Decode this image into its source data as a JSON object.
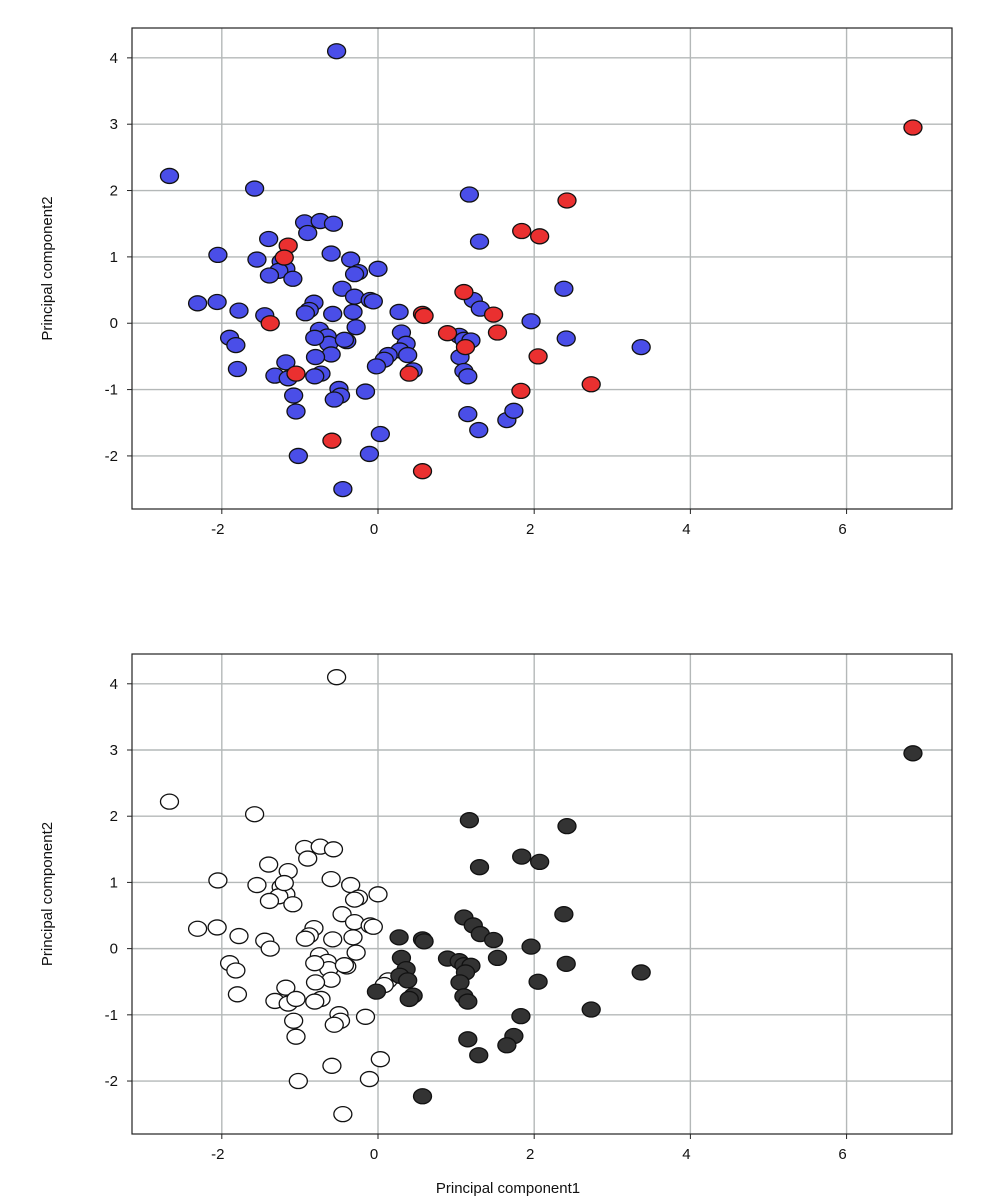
{
  "chart_data": [
    {
      "type": "scatter",
      "xlabel": "",
      "ylabel": "Principal component2",
      "xlim": [
        -3.15,
        7.35
      ],
      "ylim": [
        -2.8,
        4.45
      ],
      "xticks": [
        -2,
        0,
        2,
        4,
        6
      ],
      "yticks": [
        -2,
        -1,
        0,
        1,
        2,
        3,
        4
      ],
      "grid": true,
      "series": [
        {
          "color": "#4a4ee8",
          "points": [
            [
              -0.53,
              4.1
            ],
            [
              -2.67,
              2.22
            ],
            [
              -1.58,
              2.03
            ],
            [
              -0.94,
              1.52
            ],
            [
              -0.74,
              1.54
            ],
            [
              -0.57,
              1.5
            ],
            [
              -0.9,
              1.36
            ],
            [
              -1.4,
              1.27
            ],
            [
              -2.05,
              1.03
            ],
            [
              -1.55,
              0.96
            ],
            [
              -1.24,
              0.93
            ],
            [
              -1.18,
              0.82
            ],
            [
              -1.27,
              0.79
            ],
            [
              -1.39,
              0.72
            ],
            [
              -1.09,
              0.67
            ],
            [
              -0.6,
              1.05
            ],
            [
              -0.35,
              0.96
            ],
            [
              -0.25,
              0.77
            ],
            [
              -0.3,
              0.74
            ],
            [
              0.0,
              0.82
            ],
            [
              -0.46,
              0.52
            ],
            [
              -0.3,
              0.4
            ],
            [
              -0.1,
              0.35
            ],
            [
              -0.06,
              0.33
            ],
            [
              -2.31,
              0.3
            ],
            [
              -2.06,
              0.32
            ],
            [
              -1.78,
              0.19
            ],
            [
              -0.82,
              0.31
            ],
            [
              -0.88,
              0.2
            ],
            [
              -0.93,
              0.15
            ],
            [
              -0.58,
              0.14
            ],
            [
              -0.32,
              0.17
            ],
            [
              0.27,
              0.17
            ],
            [
              -1.45,
              0.12
            ],
            [
              -0.75,
              -0.1
            ],
            [
              -0.65,
              -0.2
            ],
            [
              -0.63,
              -0.31
            ],
            [
              -0.28,
              -0.06
            ],
            [
              -1.9,
              -0.22
            ],
            [
              -1.82,
              -0.33
            ],
            [
              -0.81,
              -0.22
            ],
            [
              -0.4,
              -0.27
            ],
            [
              -0.43,
              -0.25
            ],
            [
              0.3,
              -0.14
            ],
            [
              0.36,
              -0.31
            ],
            [
              0.28,
              -0.41
            ],
            [
              0.13,
              -0.48
            ],
            [
              0.38,
              -0.48
            ],
            [
              0.08,
              -0.55
            ],
            [
              -0.6,
              -0.47
            ],
            [
              -0.8,
              -0.51
            ],
            [
              -1.18,
              -0.59
            ],
            [
              -0.02,
              -0.65
            ],
            [
              -1.8,
              -0.69
            ],
            [
              -1.32,
              -0.79
            ],
            [
              -1.15,
              -0.83
            ],
            [
              -0.73,
              -0.76
            ],
            [
              -0.81,
              -0.8
            ],
            [
              0.45,
              -0.71
            ],
            [
              -0.5,
              -0.99
            ],
            [
              -0.16,
              -1.03
            ],
            [
              -1.08,
              -1.09
            ],
            [
              -0.48,
              -1.09
            ],
            [
              -0.56,
              -1.15
            ],
            [
              -1.05,
              -1.33
            ],
            [
              1.05,
              -0.51
            ],
            [
              1.04,
              -0.19
            ],
            [
              1.1,
              -0.25
            ],
            [
              1.1,
              -0.72
            ],
            [
              1.15,
              -0.8
            ],
            [
              1.19,
              -0.26
            ],
            [
              1.22,
              0.35
            ],
            [
              1.31,
              0.22
            ],
            [
              1.3,
              1.23
            ],
            [
              1.17,
              1.94
            ],
            [
              1.15,
              -1.37
            ],
            [
              1.29,
              -1.61
            ],
            [
              1.65,
              -1.46
            ],
            [
              1.74,
              -1.32
            ],
            [
              1.96,
              0.03
            ],
            [
              2.38,
              0.52
            ],
            [
              2.41,
              -0.23
            ],
            [
              3.37,
              -0.36
            ],
            [
              -0.45,
              -2.5
            ],
            [
              -1.02,
              -2.0
            ],
            [
              -0.11,
              -1.97
            ],
            [
              0.03,
              -1.67
            ]
          ]
        },
        {
          "color": "#ea3030",
          "points": [
            [
              6.85,
              2.95
            ],
            [
              2.42,
              1.85
            ],
            [
              1.84,
              1.39
            ],
            [
              2.07,
              1.31
            ],
            [
              -1.15,
              1.17
            ],
            [
              -1.2,
              0.99
            ],
            [
              -1.38,
              0.0
            ],
            [
              0.57,
              0.14
            ],
            [
              0.59,
              0.11
            ],
            [
              1.1,
              0.47
            ],
            [
              1.48,
              0.13
            ],
            [
              1.53,
              -0.14
            ],
            [
              0.89,
              -0.15
            ],
            [
              1.12,
              -0.36
            ],
            [
              2.05,
              -0.5
            ],
            [
              0.4,
              -0.76
            ],
            [
              -1.05,
              -0.76
            ],
            [
              2.73,
              -0.92
            ],
            [
              1.83,
              -1.02
            ],
            [
              -0.59,
              -1.77
            ],
            [
              0.57,
              -2.23
            ]
          ]
        }
      ]
    },
    {
      "type": "scatter",
      "xlabel": "Principal component1",
      "ylabel": "Principal component2",
      "xlim": [
        -3.15,
        7.35
      ],
      "ylim": [
        -2.8,
        4.45
      ],
      "xticks": [
        -2,
        0,
        2,
        4,
        6
      ],
      "yticks": [
        -2,
        -1,
        0,
        1,
        2,
        3,
        4
      ],
      "grid": true,
      "series": [
        {
          "color": "#ffffff",
          "points": [
            [
              -0.53,
              4.1
            ],
            [
              -2.67,
              2.22
            ],
            [
              -1.58,
              2.03
            ],
            [
              -0.94,
              1.52
            ],
            [
              -0.74,
              1.54
            ],
            [
              -0.57,
              1.5
            ],
            [
              -0.9,
              1.36
            ],
            [
              -1.4,
              1.27
            ],
            [
              -2.05,
              1.03
            ],
            [
              -1.55,
              0.96
            ],
            [
              -1.24,
              0.93
            ],
            [
              -1.18,
              0.82
            ],
            [
              -1.27,
              0.79
            ],
            [
              -1.39,
              0.72
            ],
            [
              -1.09,
              0.67
            ],
            [
              -0.6,
              1.05
            ],
            [
              -0.35,
              0.96
            ],
            [
              -0.25,
              0.77
            ],
            [
              -0.3,
              0.74
            ],
            [
              0.0,
              0.82
            ],
            [
              -0.46,
              0.52
            ],
            [
              -0.3,
              0.4
            ],
            [
              -0.1,
              0.35
            ],
            [
              -0.06,
              0.33
            ],
            [
              -2.31,
              0.3
            ],
            [
              -2.06,
              0.32
            ],
            [
              -1.78,
              0.19
            ],
            [
              -0.82,
              0.31
            ],
            [
              -0.88,
              0.2
            ],
            [
              -0.93,
              0.15
            ],
            [
              -0.58,
              0.14
            ],
            [
              -0.32,
              0.17
            ],
            [
              -1.45,
              0.12
            ],
            [
              -0.75,
              -0.1
            ],
            [
              -0.65,
              -0.2
            ],
            [
              -0.63,
              -0.31
            ],
            [
              -0.28,
              -0.06
            ],
            [
              -1.9,
              -0.22
            ],
            [
              -1.82,
              -0.33
            ],
            [
              -0.81,
              -0.22
            ],
            [
              -0.4,
              -0.27
            ],
            [
              -0.43,
              -0.25
            ],
            [
              0.13,
              -0.48
            ],
            [
              0.08,
              -0.55
            ],
            [
              -0.6,
              -0.47
            ],
            [
              -0.8,
              -0.51
            ],
            [
              -1.18,
              -0.59
            ],
            [
              -1.8,
              -0.69
            ],
            [
              -1.32,
              -0.79
            ],
            [
              -1.15,
              -0.83
            ],
            [
              -0.73,
              -0.76
            ],
            [
              -0.81,
              -0.8
            ],
            [
              -0.5,
              -0.99
            ],
            [
              -0.16,
              -1.03
            ],
            [
              -1.08,
              -1.09
            ],
            [
              -0.48,
              -1.09
            ],
            [
              -0.56,
              -1.15
            ],
            [
              -1.05,
              -1.33
            ],
            [
              -1.15,
              1.17
            ],
            [
              -1.2,
              0.99
            ],
            [
              -1.38,
              0.0
            ],
            [
              -1.05,
              -0.76
            ],
            [
              -0.59,
              -1.77
            ],
            [
              -0.45,
              -2.5
            ],
            [
              -1.02,
              -2.0
            ],
            [
              -0.11,
              -1.97
            ],
            [
              0.03,
              -1.67
            ]
          ]
        },
        {
          "color": "#333333",
          "points": [
            [
              6.85,
              2.95
            ],
            [
              2.42,
              1.85
            ],
            [
              1.84,
              1.39
            ],
            [
              2.07,
              1.31
            ],
            [
              1.3,
              1.23
            ],
            [
              1.17,
              1.94
            ],
            [
              2.38,
              0.52
            ],
            [
              1.1,
              0.47
            ],
            [
              1.22,
              0.35
            ],
            [
              1.31,
              0.22
            ],
            [
              1.48,
              0.13
            ],
            [
              0.57,
              0.14
            ],
            [
              0.59,
              0.11
            ],
            [
              0.27,
              0.17
            ],
            [
              1.96,
              0.03
            ],
            [
              1.53,
              -0.14
            ],
            [
              0.89,
              -0.15
            ],
            [
              1.04,
              -0.19
            ],
            [
              1.1,
              -0.25
            ],
            [
              1.19,
              -0.26
            ],
            [
              2.41,
              -0.23
            ],
            [
              0.3,
              -0.14
            ],
            [
              0.36,
              -0.31
            ],
            [
              0.28,
              -0.41
            ],
            [
              0.38,
              -0.48
            ],
            [
              1.12,
              -0.36
            ],
            [
              1.05,
              -0.51
            ],
            [
              2.05,
              -0.5
            ],
            [
              3.37,
              -0.36
            ],
            [
              -0.02,
              -0.65
            ],
            [
              0.45,
              -0.71
            ],
            [
              0.4,
              -0.76
            ],
            [
              1.1,
              -0.72
            ],
            [
              1.15,
              -0.8
            ],
            [
              2.73,
              -0.92
            ],
            [
              1.83,
              -1.02
            ],
            [
              1.15,
              -1.37
            ],
            [
              1.74,
              -1.32
            ],
            [
              1.65,
              -1.46
            ],
            [
              1.29,
              -1.61
            ],
            [
              0.57,
              -2.23
            ]
          ]
        }
      ]
    }
  ]
}
